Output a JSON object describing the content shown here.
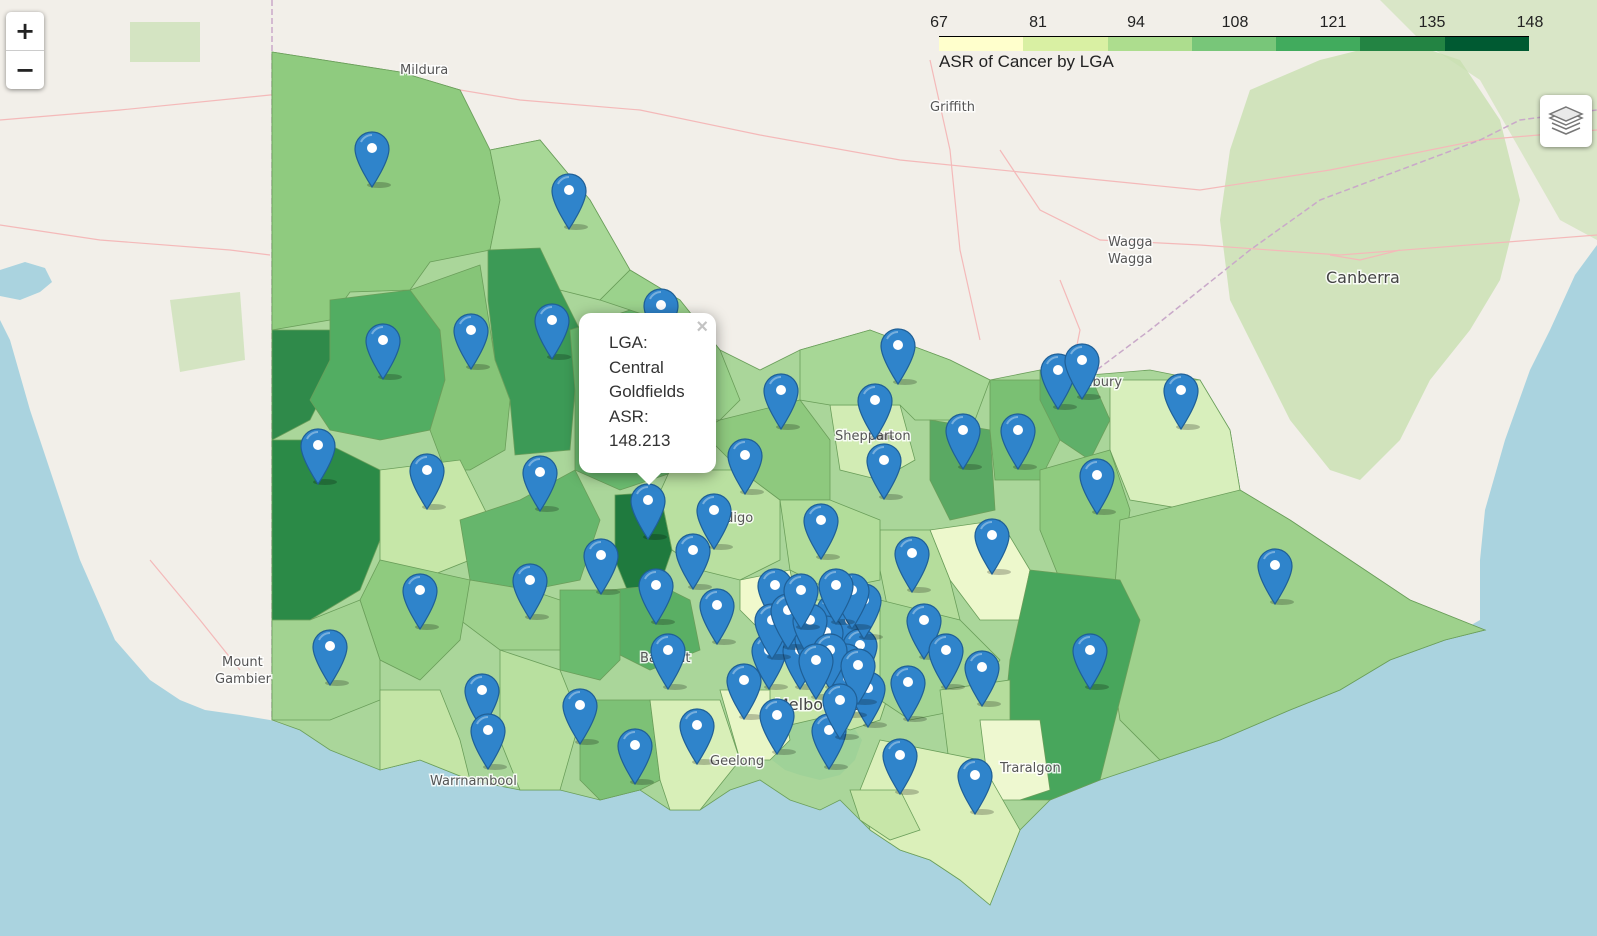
{
  "map": {
    "zoom_in_label": "+",
    "zoom_out_label": "−",
    "place_labels": [
      "Mildura",
      "Griffith",
      "Wagga Wagga",
      "Canberra",
      "Mount Gambier",
      "Shepparton",
      "Albury",
      "Bendigo",
      "Ballarat",
      "Melbourne",
      "Geelong",
      "Warrnambool",
      "Traralgon"
    ],
    "marker_color": "#2f84cb",
    "marker_count": 79
  },
  "legend": {
    "caption": "ASR of Cancer by LGA",
    "tick_labels": [
      "67",
      "81",
      "94",
      "108",
      "121",
      "135",
      "148"
    ],
    "colors": [
      "#ffffcc",
      "#d9f0a3",
      "#addd8e",
      "#78c679",
      "#41ab5d",
      "#238443",
      "#005a32"
    ]
  },
  "popup": {
    "line1": "LGA:",
    "line2": "Central",
    "line3": "Goldfields",
    "line4": "ASR:",
    "line5": "148.213"
  },
  "controls": {
    "layers_icon": "layers-icon",
    "close_glyph": "×"
  }
}
